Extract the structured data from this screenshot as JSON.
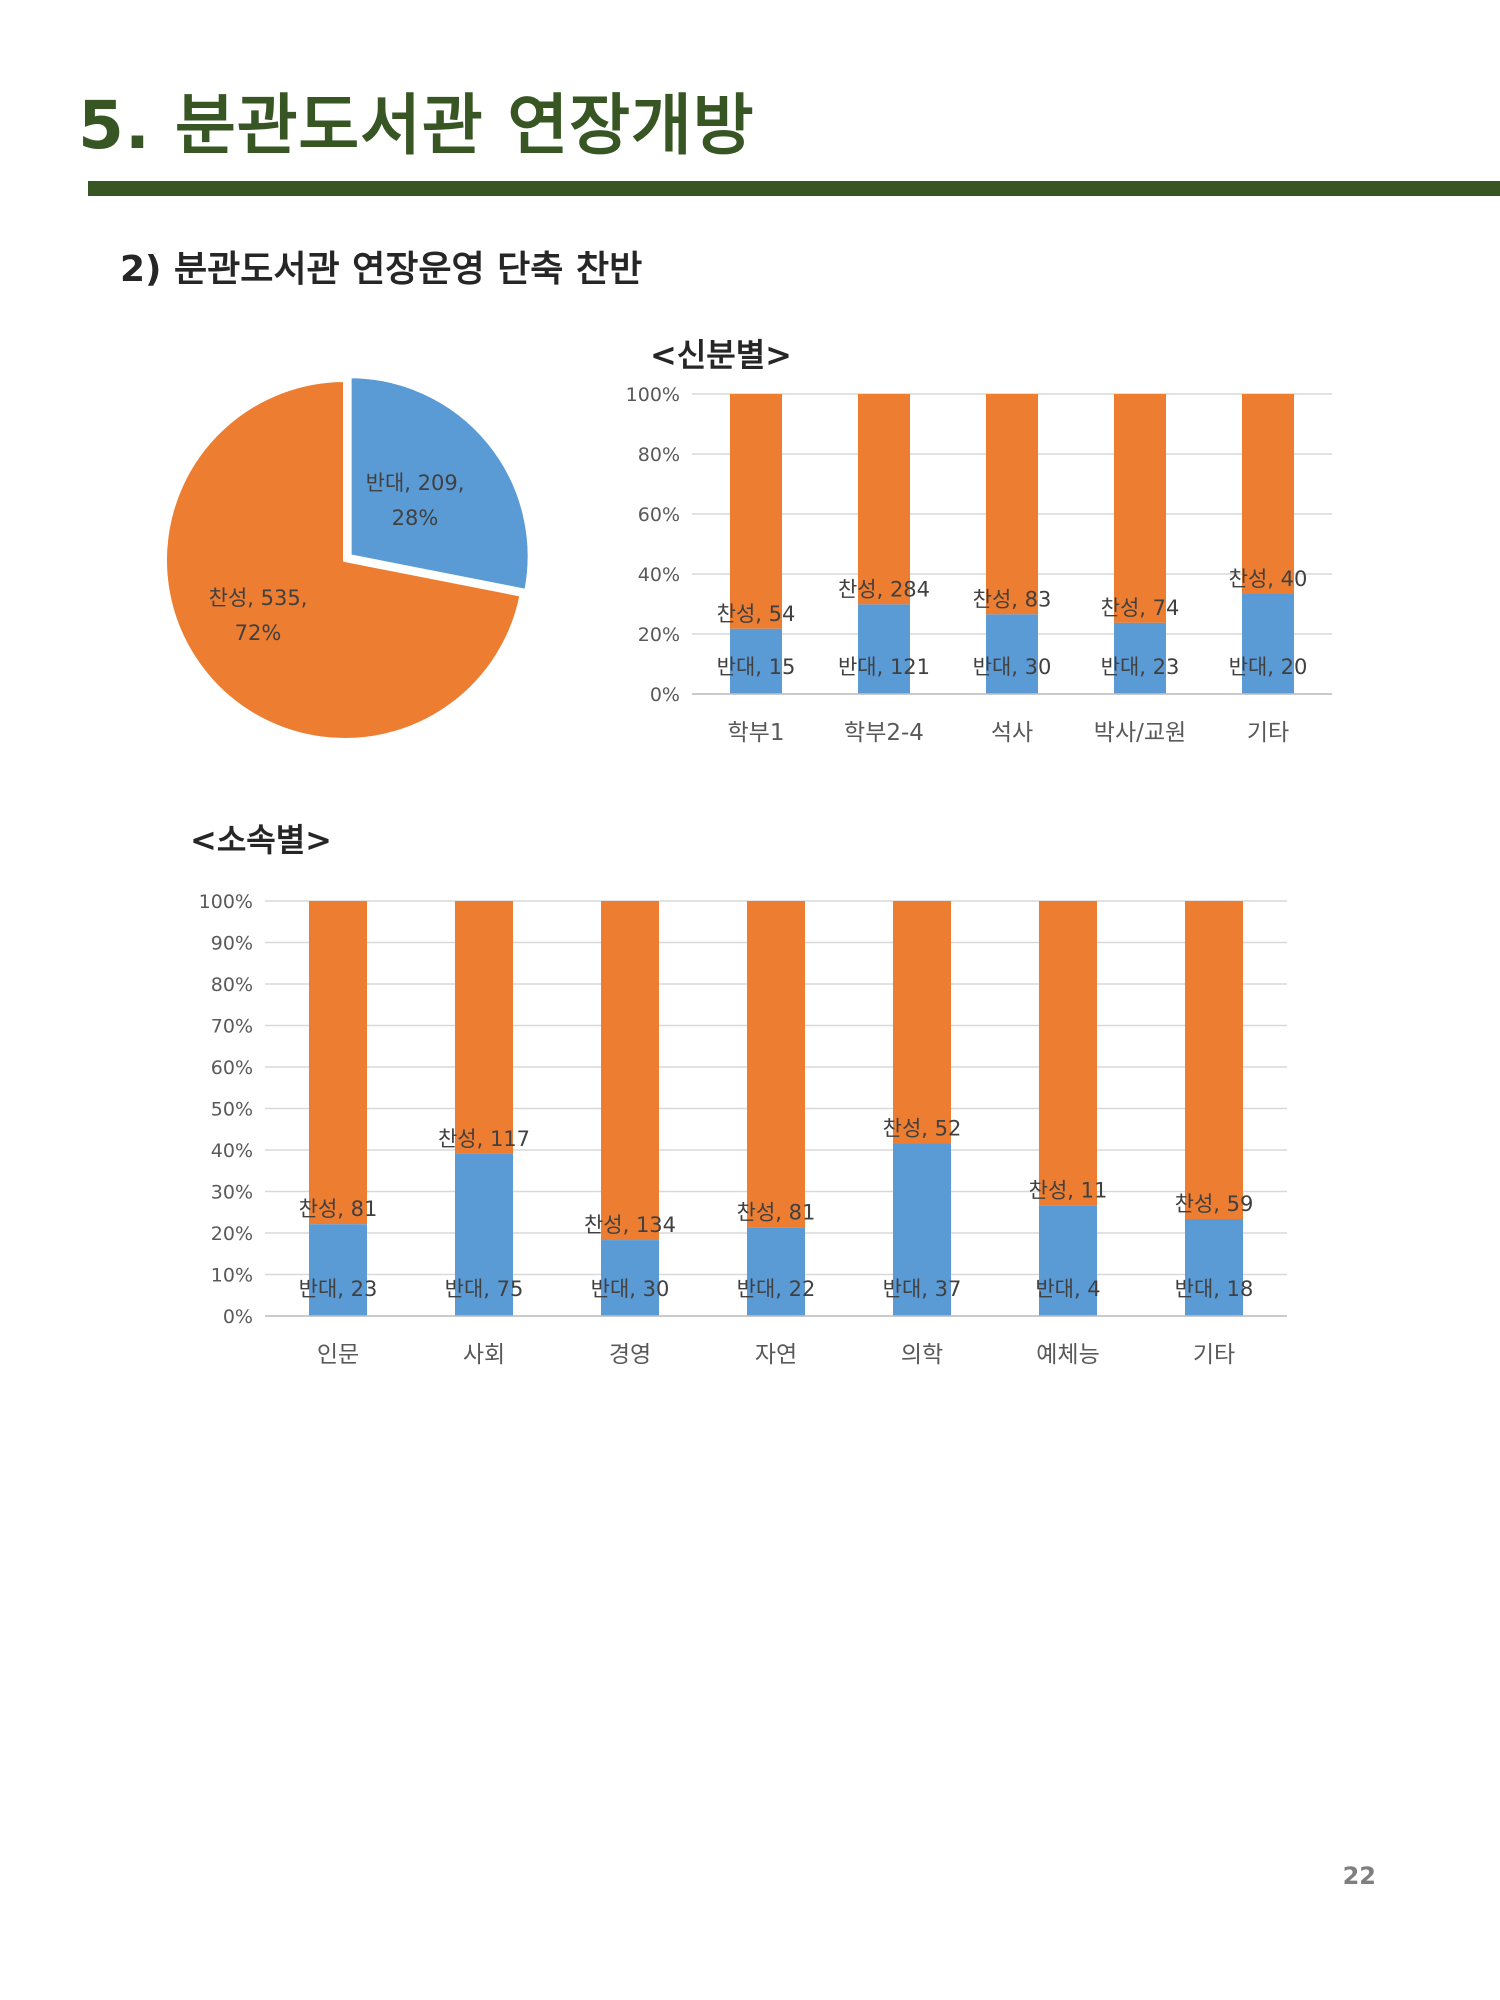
{
  "page": {
    "title": "5. 분관도서관 연장개방",
    "section_title": "2) 분관도서관 연장운영 단축 찬반",
    "page_number": "22"
  },
  "colors": {
    "title_green": "#375623",
    "oppose_blue": "#5B9BD5",
    "agree_orange": "#ED7D31"
  },
  "chart_data": [
    {
      "id": "overall",
      "type": "pie",
      "slices": [
        {
          "name": "반대",
          "value": 209,
          "percent": "28%",
          "label_line1": "반대, 209,",
          "label_line2": "28%"
        },
        {
          "name": "찬성",
          "value": 535,
          "percent": "72%",
          "label_line1": "찬성, 535,",
          "label_line2": "72%"
        }
      ]
    },
    {
      "id": "by_status",
      "type": "bar",
      "stacking": "percent",
      "heading": "<신분별>",
      "categories": [
        "학부1",
        "학부2-4",
        "석사",
        "박사/교원",
        "기타"
      ],
      "series": [
        {
          "name": "반대",
          "values": [
            15,
            121,
            30,
            23,
            20
          ]
        },
        {
          "name": "찬성",
          "values": [
            54,
            284,
            83,
            74,
            40
          ]
        }
      ],
      "ylim": [
        0,
        100
      ],
      "yticks": [
        "0%",
        "20%",
        "40%",
        "60%",
        "80%",
        "100%"
      ],
      "data_labels": {
        "oppose": [
          "반대, 15",
          "반대, 121",
          "반대, 30",
          "반대, 23",
          "반대, 20"
        ],
        "agree": [
          "찬성, 54",
          "찬성, 284",
          "찬성, 83",
          "찬성, 74",
          "찬성, 40"
        ]
      },
      "grid": true,
      "legend": "none"
    },
    {
      "id": "by_affiliation",
      "type": "bar",
      "stacking": "percent",
      "heading": "<소속별>",
      "categories": [
        "인문",
        "사회",
        "경영",
        "자연",
        "의학",
        "예체능",
        "기타"
      ],
      "series": [
        {
          "name": "반대",
          "values": [
            23,
            75,
            30,
            22,
            37,
            4,
            18
          ]
        },
        {
          "name": "찬성",
          "values": [
            81,
            117,
            134,
            81,
            52,
            11,
            59
          ]
        }
      ],
      "ylim": [
        0,
        100
      ],
      "yticks": [
        "0%",
        "10%",
        "20%",
        "30%",
        "40%",
        "50%",
        "60%",
        "70%",
        "80%",
        "90%",
        "100%"
      ],
      "data_labels": {
        "oppose": [
          "반대, 23",
          "반대, 75",
          "반대, 30",
          "반대, 22",
          "반대, 37",
          "반대, 4",
          "반대, 18"
        ],
        "agree": [
          "찬성, 81",
          "찬성, 117",
          "찬성, 134",
          "찬성, 81",
          "찬성, 52",
          "찬성, 11",
          "찬성, 59"
        ]
      },
      "grid": true,
      "legend": "none"
    }
  ]
}
